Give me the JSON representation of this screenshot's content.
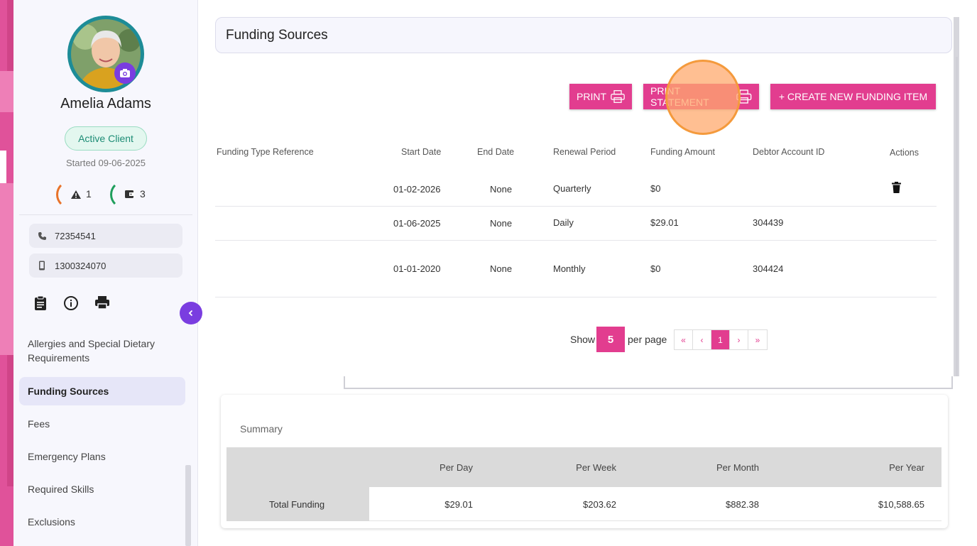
{
  "client": {
    "name": "Amelia Adams",
    "status": "Active Client",
    "started": "Started 09-06-2025",
    "alerts_count": "1",
    "wallet_count": "3",
    "phone": "72354541",
    "mobile": "1300324070"
  },
  "nav": {
    "items": [
      {
        "label": "Allergies and Special Dietary Requirements"
      },
      {
        "label": "Funding Sources"
      },
      {
        "label": "Fees"
      },
      {
        "label": "Emergency Plans"
      },
      {
        "label": "Required Skills"
      },
      {
        "label": "Exclusions"
      }
    ]
  },
  "page": {
    "title": "Funding Sources"
  },
  "toolbar": {
    "print_label": "PRINT",
    "print_statement_label": "PRINT STATEMENT",
    "create_label": "+ CREATE NEW FUNDING ITEM"
  },
  "table": {
    "headers": [
      "Funding Type Reference",
      "Start Date",
      "End Date",
      "Renewal Period",
      "Funding Amount",
      "Debtor Account ID",
      "Actions"
    ],
    "rows": [
      {
        "ref": "",
        "start": "01-02-2026",
        "end": "None",
        "period": "Quarterly",
        "amount": "$0",
        "debtor": ""
      },
      {
        "ref": "",
        "start": "01-06-2025",
        "end": "None",
        "period": "Daily",
        "amount": "$29.01",
        "debtor": "304439"
      },
      {
        "ref": "",
        "start": "01-01-2020",
        "end": "None",
        "period": "Monthly",
        "amount": "$0",
        "debtor": "304424"
      }
    ]
  },
  "pagination": {
    "show_label": "Show",
    "per_page_value": "5",
    "per_page_label": "per page",
    "first": "«",
    "prev": "‹",
    "current": "1",
    "next": "›",
    "last": "»"
  },
  "summary": {
    "label": "Summary",
    "headers": [
      "Per Day",
      "Per Week",
      "Per Month",
      "Per Year"
    ],
    "row_label": "Total Funding",
    "values": [
      "$29.01",
      "$203.62",
      "$882.38",
      "$10,588.65"
    ]
  },
  "colors": {
    "accent": "#e23d8f",
    "purple": "#7a3de0",
    "teal": "#1d8c97"
  },
  "icons": [
    "camera-icon",
    "warning-icon",
    "wallet-icon",
    "phone-icon",
    "mobile-icon",
    "clipboard-icon",
    "info-icon",
    "printer-icon",
    "chevron-left-icon",
    "trash-icon"
  ]
}
